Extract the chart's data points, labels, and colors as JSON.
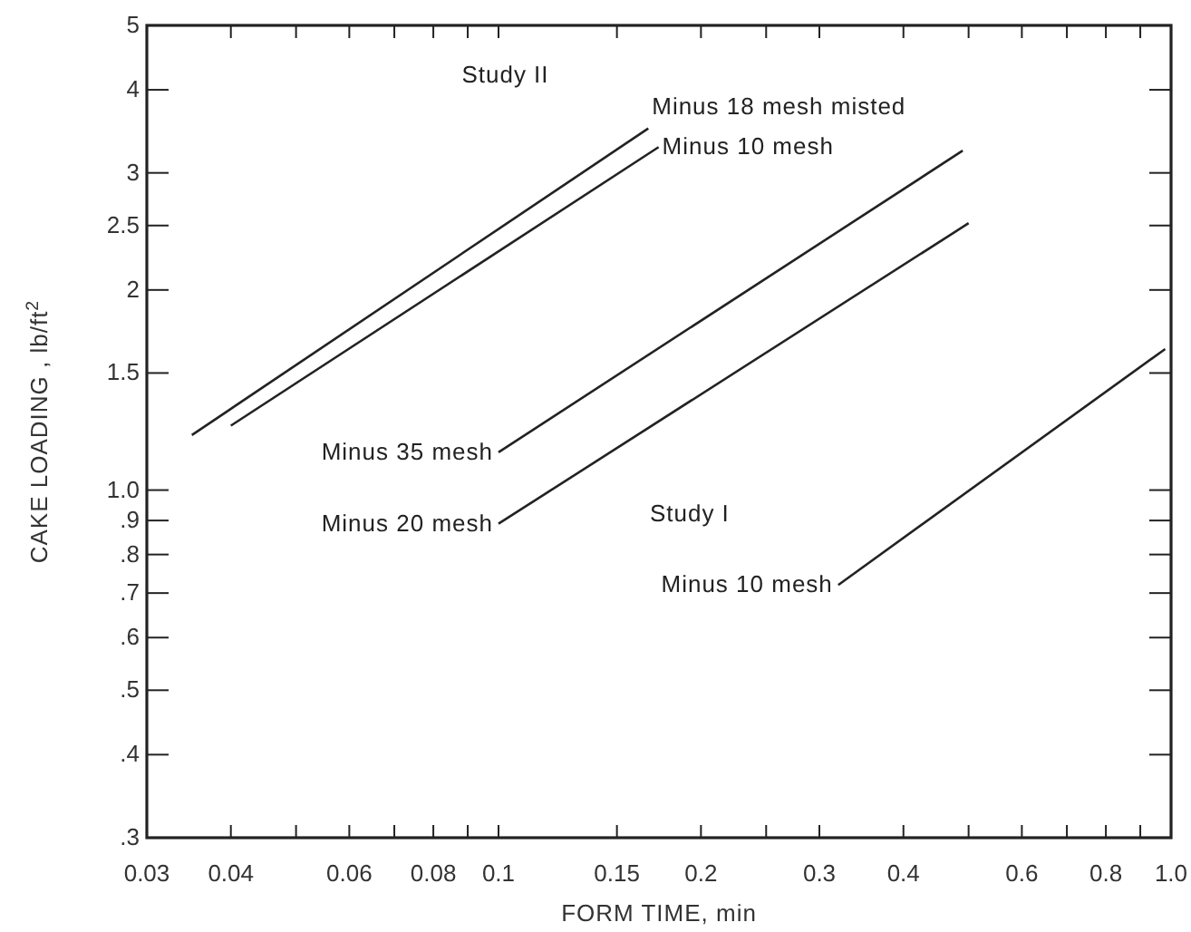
{
  "chart_data": {
    "type": "line",
    "xlabel": "FORM TIME, min",
    "ylabel": "CAKE LOADING , lb/ft$^{2}$",
    "log": "xy",
    "grid": false,
    "marker": "none",
    "line_style": "solid",
    "xlim": [
      0.03,
      1.0
    ],
    "ylim": [
      0.3,
      5
    ],
    "xticks": [
      0.03,
      0.04,
      {
        "value": 0.05,
        "label": null
      },
      0.06,
      {
        "value": 0.07,
        "label": null
      },
      0.08,
      {
        "value": 0.09,
        "label": null
      },
      0.1,
      0.15,
      0.2,
      {
        "value": 0.25,
        "label": null
      },
      0.3,
      0.4,
      {
        "value": 0.5,
        "label": null
      },
      0.6,
      {
        "value": 0.7,
        "label": null
      },
      0.8,
      {
        "value": 0.9,
        "label": null
      },
      {
        "value": 1.0,
        "label": "1.0"
      }
    ],
    "yticks": [
      {
        "value": 0.3,
        "label": ".3"
      },
      {
        "value": 0.4,
        "label": ".4"
      },
      {
        "value": 0.5,
        "label": ".5"
      },
      {
        "value": 0.6,
        "label": ".6"
      },
      {
        "value": 0.7,
        "label": ".7"
      },
      {
        "value": 0.8,
        "label": ".8"
      },
      {
        "value": 0.9,
        "label": ".9"
      },
      {
        "value": 1.0,
        "label": "1.0"
      },
      1.5,
      2,
      2.5,
      3,
      4,
      5
    ],
    "series": [
      {
        "name": "Minus 18 mesh misted",
        "color": "#222222",
        "x": [
          0.035,
          0.167
        ],
        "values": [
          1.21,
          3.5
        ]
      },
      {
        "name": "Minus 10 mesh",
        "color": "#222222",
        "x": [
          0.04,
          0.173
        ],
        "values": [
          1.25,
          3.28
        ]
      },
      {
        "name": "Minus 35 mesh",
        "color": "#222222",
        "x": [
          0.1,
          0.49
        ],
        "values": [
          1.14,
          3.24
        ]
      },
      {
        "name": "Minus 20 mesh",
        "color": "#222222",
        "x": [
          0.1,
          0.5
        ],
        "values": [
          0.89,
          2.52
        ]
      },
      {
        "name": "Minus 10 mesh",
        "color": "#222222",
        "x": [
          0.32,
          0.98
        ],
        "values": [
          0.72,
          1.63
        ]
      }
    ],
    "annotations": [
      "Study II",
      "Study I"
    ]
  }
}
